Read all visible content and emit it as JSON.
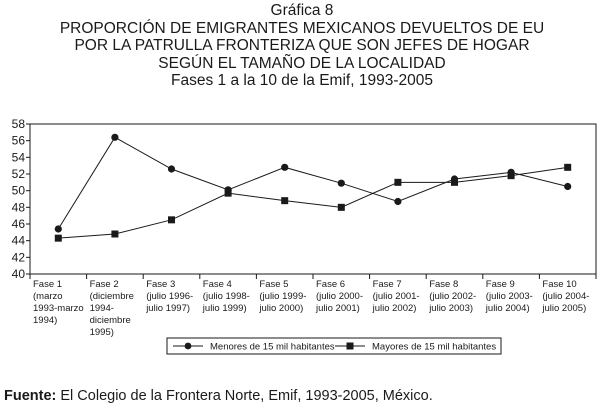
{
  "figure": {
    "label": "Gráfica 8",
    "title_lines": [
      "PROPORCIÓN DE EMIGRANTES MEXICANOS DEVUELTOS DE EU",
      "POR LA PATRULLA FRONTERIZA QUE SON JEFES DE HOGAR",
      "SEGÚN EL TAMAÑO DE LA LOCALIDAD"
    ],
    "subtitle": "Fases 1 a la 10 de la Emif, 1993-2005"
  },
  "source": {
    "label": "Fuente:",
    "text": " El Colegio de la Frontera Norte, Emif, 1993-2005, México."
  },
  "chart_data": {
    "type": "line",
    "title": "PROPORCIÓN DE EMIGRANTES MEXICANOS DEVUELTOS DE EU POR LA PATRULLA FRONTERIZA QUE SON JEFES DE HOGAR SEGÚN EL TAMAÑO DE LA LOCALIDAD",
    "subtitle": "Fases 1 a la 10 de la Emif, 1993-2005",
    "xlabel": "",
    "ylabel": "",
    "ylim": [
      40,
      58
    ],
    "yticks": [
      40,
      42,
      44,
      46,
      48,
      50,
      52,
      54,
      56,
      58
    ],
    "grid": false,
    "legend_position": "bottom",
    "categories": [
      [
        "Fase 1",
        "(marzo",
        "1993-marzo",
        "1994)"
      ],
      [
        "Fase 2",
        "(diciembre",
        "1994-",
        "diciembre",
        "1995)"
      ],
      [
        "Fase 3",
        "(julio 1996-",
        "julio 1997)"
      ],
      [
        "Fase 4",
        "(julio 1998-",
        "julio 1999)"
      ],
      [
        "Fase 5",
        "(julio 1999-",
        "julio 2000)"
      ],
      [
        "Fase 6",
        "(julio 2000-",
        "julio 2001)"
      ],
      [
        "Fase 7",
        "(julio 2001-",
        "julio 2002)"
      ],
      [
        "Fase 8",
        "(julio 2002-",
        "julio 2003)"
      ],
      [
        "Fase 9",
        "(julio 2003-",
        "julio 2004)"
      ],
      [
        "Fase 10",
        "(julio 2004-",
        "julio 2005)"
      ]
    ],
    "series": [
      {
        "name": "Menores de 15 mil habitantes",
        "marker": "circle",
        "values": [
          45.4,
          56.4,
          52.6,
          50.1,
          52.8,
          50.9,
          48.7,
          51.4,
          52.2,
          50.5
        ]
      },
      {
        "name": "Mayores de 15 mil habitantes",
        "marker": "square",
        "values": [
          44.3,
          44.8,
          46.5,
          49.7,
          48.8,
          48.0,
          51.0,
          51.0,
          51.8,
          52.8
        ]
      }
    ]
  }
}
